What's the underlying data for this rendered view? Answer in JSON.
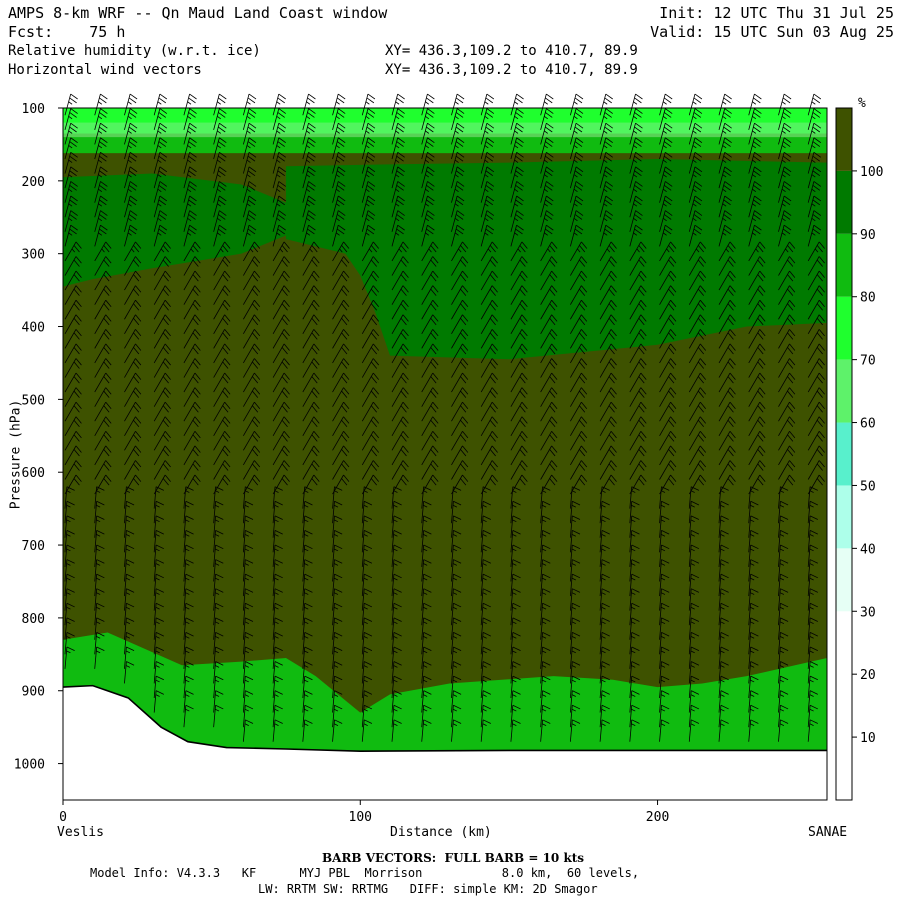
{
  "header": {
    "title_left": "AMPS 8-km WRF -- Qn Maud Land Coast window",
    "init": "Init: 12 UTC Thu 31 Jul 25",
    "fcst": "Fcst:    75 h",
    "valid": "Valid: 15 UTC Sun 03 Aug 25",
    "field1": "Relative humidity (w.r.t. ice)",
    "field1_xy": "XY= 436.3,109.2 to 410.7, 89.9",
    "field2": "Horizontal wind vectors",
    "field2_xy": "XY= 436.3,109.2 to 410.7, 89.9"
  },
  "footer": {
    "barb_note": "BARB VECTORS:  FULL BARB = 10 kts",
    "model_line1": "Model Info: V4.3.3   KF      MYJ PBL  Morrison           8.0 km,  60 levels,",
    "model_line2": "LW: RRTM SW: RRTMG   DIFF: simple KM: 2D Smagor"
  },
  "chart_data": {
    "type": "heatmap",
    "title": "Relative humidity (w.r.t. ice)",
    "xlabel": "Distance (km)",
    "ylabel": "Pressure (hPa)",
    "x_start_label": "Veslis",
    "x_end_label": "SANAE",
    "xlim": [
      0,
      257
    ],
    "ylim": [
      1050,
      100
    ],
    "xticks": [
      0,
      100,
      200
    ],
    "xtick_labels": [
      "0",
      "100",
      "200"
    ],
    "yticks": [
      100,
      200,
      300,
      400,
      500,
      600,
      700,
      800,
      900,
      1000
    ],
    "ytick_labels": [
      "100",
      "200",
      "300",
      "400",
      "500",
      "600",
      "700",
      "800",
      "900",
      "1000"
    ],
    "colorbar": {
      "unit": "%",
      "levels": [
        10,
        20,
        30,
        40,
        50,
        60,
        70,
        80,
        90,
        100
      ],
      "labels": [
        "10",
        "20",
        "30",
        "40",
        "50",
        "60",
        "70",
        "80",
        "90",
        "100"
      ],
      "colors": [
        "#ffffff",
        "#ffffff",
        "#ffffff",
        "#e6fff5",
        "#adffea",
        "#58f0cc",
        "#5ef26a",
        "#1fff2e",
        "#10bb10",
        "#007a00",
        "#3e5200"
      ]
    },
    "regions": [
      {
        "name": "top band",
        "rh": "70-80",
        "x": [
          0,
          257
        ],
        "p": [
          100,
          135
        ]
      },
      {
        "name": "upper moist band",
        "rh": "80-90",
        "x": [
          0,
          257
        ],
        "p": [
          135,
          160
        ]
      },
      {
        "name": "upper layer",
        "rh": ">100",
        "x": [
          0,
          257
        ],
        "p": [
          160,
          445
        ]
      },
      {
        "name": "mid-upper moist zone",
        "rh": "90-100",
        "x": [
          75,
          257
        ],
        "p": [
          175,
          445
        ]
      },
      {
        "name": "upper-left moist patch",
        "rh": "90-100",
        "x": [
          0,
          75
        ],
        "p": [
          190,
          345
        ]
      },
      {
        "name": "interior bulk",
        "rh": ">100",
        "x": [
          0,
          257
        ],
        "p": [
          445,
          850
        ]
      },
      {
        "name": "low-level moist band",
        "rh": "80-90",
        "x": [
          0,
          257
        ],
        "p": [
          820,
          985
        ]
      }
    ],
    "terrain_surface": [
      {
        "x": 0,
        "p": 895
      },
      {
        "x": 10,
        "p": 893
      },
      {
        "x": 22,
        "p": 910
      },
      {
        "x": 33,
        "p": 950
      },
      {
        "x": 42,
        "p": 970
      },
      {
        "x": 55,
        "p": 978
      },
      {
        "x": 75,
        "p": 980
      },
      {
        "x": 100,
        "p": 983
      },
      {
        "x": 150,
        "p": 982
      },
      {
        "x": 200,
        "p": 982
      },
      {
        "x": 257,
        "p": 982
      }
    ],
    "wind_barbs": {
      "columns_x_km": [
        0,
        10,
        20,
        30,
        40,
        50,
        60,
        70,
        80,
        90,
        100,
        110,
        120,
        130,
        140,
        150,
        160,
        170,
        180,
        190,
        200,
        210,
        220,
        230,
        240,
        250
      ],
      "levels_hpa": [
        110,
        130,
        150,
        170,
        190,
        210,
        230,
        250,
        270,
        290,
        310,
        330,
        350,
        370,
        390,
        410,
        430,
        450,
        470,
        490,
        510,
        530,
        550,
        570,
        590,
        610,
        630,
        650,
        670,
        690,
        710,
        730,
        750,
        770,
        790,
        810,
        830,
        850,
        870,
        890,
        910,
        930,
        950,
        970
      ],
      "upper_speed_kts": 25,
      "mid_speed_kts": 20,
      "lower_speed_kts": 15
    }
  }
}
